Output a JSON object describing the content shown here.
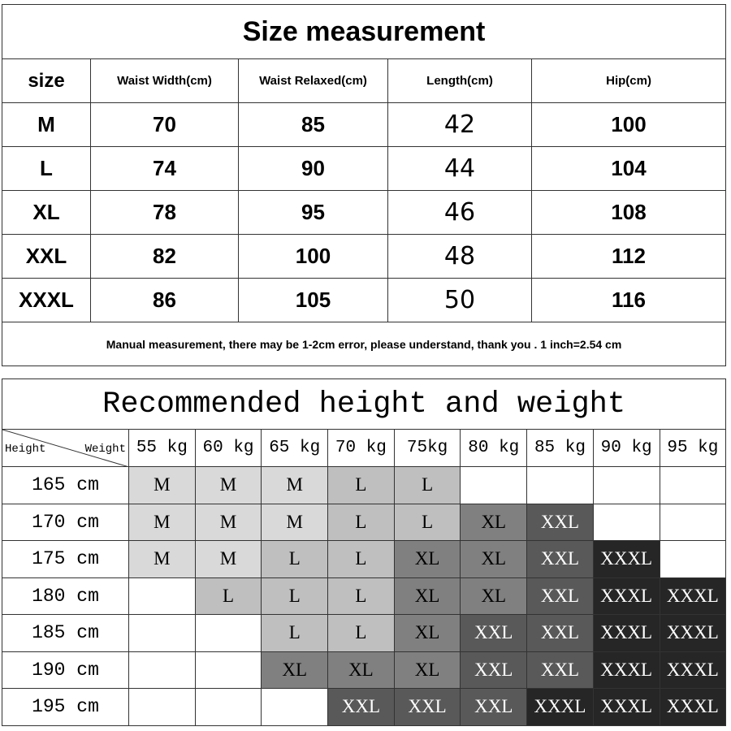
{
  "size_table": {
    "title": "Size measurement",
    "headers": [
      "size",
      "Waist Width(cm)",
      "Waist Relaxed(cm)",
      "Length(cm)",
      "Hip(cm)"
    ],
    "rows": [
      [
        "M",
        "70",
        "85",
        "42",
        "100"
      ],
      [
        "L",
        "74",
        "90",
        "44",
        "104"
      ],
      [
        "XL",
        "78",
        "95",
        "46",
        "108"
      ],
      [
        "XXL",
        "82",
        "100",
        "48",
        "112"
      ],
      [
        "XXXL",
        "86",
        "105",
        "50",
        "116"
      ]
    ],
    "note": "Manual measurement, there may be 1-2cm error, please understand, thank you .   1 inch=2.54 cm"
  },
  "recommend_table": {
    "title": "Recommended height and weight",
    "corner_left": "Height",
    "corner_right": "Weight",
    "weights": [
      "55 kg",
      "60 kg",
      "65 kg",
      "70 kg",
      "75kg",
      "80 kg",
      "85 kg",
      "90 kg",
      "95 kg"
    ],
    "rows": [
      {
        "height": "165 cm",
        "sizes": [
          "M",
          "M",
          "M",
          "L",
          "L",
          "",
          "",
          "",
          ""
        ]
      },
      {
        "height": "170 cm",
        "sizes": [
          "M",
          "M",
          "M",
          "L",
          "L",
          "XL",
          "XXL",
          "",
          ""
        ]
      },
      {
        "height": "175 cm",
        "sizes": [
          "M",
          "M",
          "L",
          "L",
          "XL",
          "XL",
          "XXL",
          "XXXL",
          ""
        ]
      },
      {
        "height": "180 cm",
        "sizes": [
          "",
          "L",
          "L",
          "L",
          "XL",
          "XL",
          "XXL",
          "XXXL",
          "XXXL"
        ]
      },
      {
        "height": "185 cm",
        "sizes": [
          "",
          "",
          "L",
          "L",
          "XL",
          "XXL",
          "XXL",
          "XXXL",
          "XXXL"
        ]
      },
      {
        "height": "190 cm",
        "sizes": [
          "",
          "",
          "XL",
          "XL",
          "XL",
          "XXL",
          "XXL",
          "XXXL",
          "XXXL"
        ]
      },
      {
        "height": "195 cm",
        "sizes": [
          "",
          "",
          "",
          "XXL",
          "XXL",
          "XXL",
          "XXXL",
          "XXXL",
          "XXXL"
        ]
      }
    ],
    "size_colors": {
      "M": "#d9d9d9",
      "L": "#bfbfbf",
      "XL": "#808080",
      "XXL": "#595959",
      "XXXL": "#262626"
    }
  }
}
